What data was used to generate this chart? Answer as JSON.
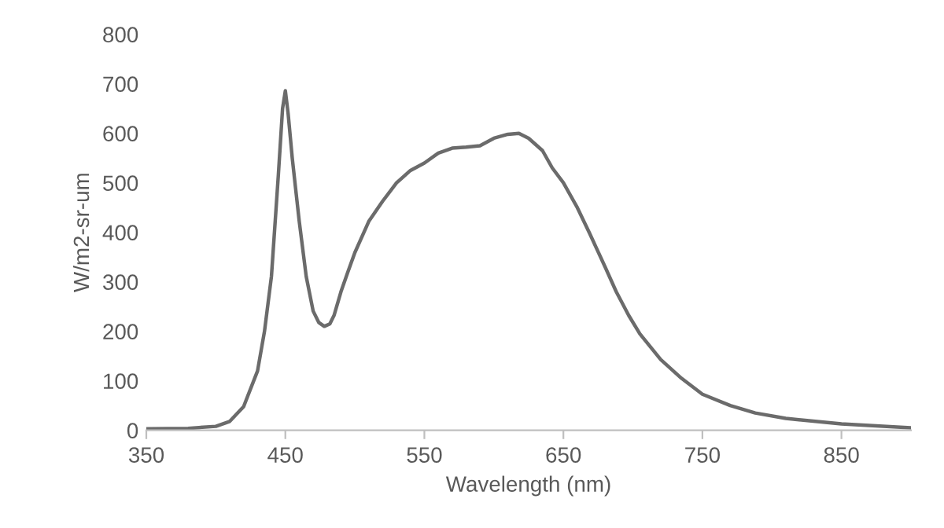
{
  "chart_data": {
    "type": "line",
    "xlabel": "Wavelength (nm)",
    "ylabel": "W/m2-sr-um",
    "xlim": [
      350,
      900
    ],
    "ylim": [
      0,
      800
    ],
    "xticks": [
      350,
      450,
      550,
      650,
      750,
      850
    ],
    "yticks": [
      0,
      100,
      200,
      300,
      400,
      500,
      600,
      700,
      800
    ],
    "grid": false,
    "legend": false,
    "marker": "none",
    "line_style": "solid",
    "series": [
      {
        "color": "#6b6b6b",
        "x": [
          350,
          380,
          400,
          410,
          420,
          430,
          435,
          440,
          445,
          448,
          450,
          452,
          455,
          460,
          465,
          470,
          474,
          478,
          482,
          485,
          490,
          495,
          500,
          510,
          520,
          530,
          540,
          550,
          560,
          570,
          580,
          590,
          600,
          610,
          618,
          625,
          635,
          642,
          650,
          660,
          669,
          680,
          688,
          697,
          705,
          720,
          735,
          750,
          770,
          788,
          810,
          850,
          900
        ],
        "values": [
          3,
          4,
          8,
          18,
          48,
          120,
          200,
          311,
          517,
          650,
          686,
          640,
          549,
          422,
          311,
          241,
          218,
          210,
          215,
          232,
          280,
          320,
          359,
          422,
          463,
          500,
          525,
          540,
          560,
          570,
          572,
          575,
          590,
          598,
          600,
          590,
          565,
          530,
          500,
          450,
          397,
          330,
          280,
          232,
          195,
          143,
          105,
          73,
          50,
          35,
          24,
          13,
          5
        ]
      }
    ]
  }
}
